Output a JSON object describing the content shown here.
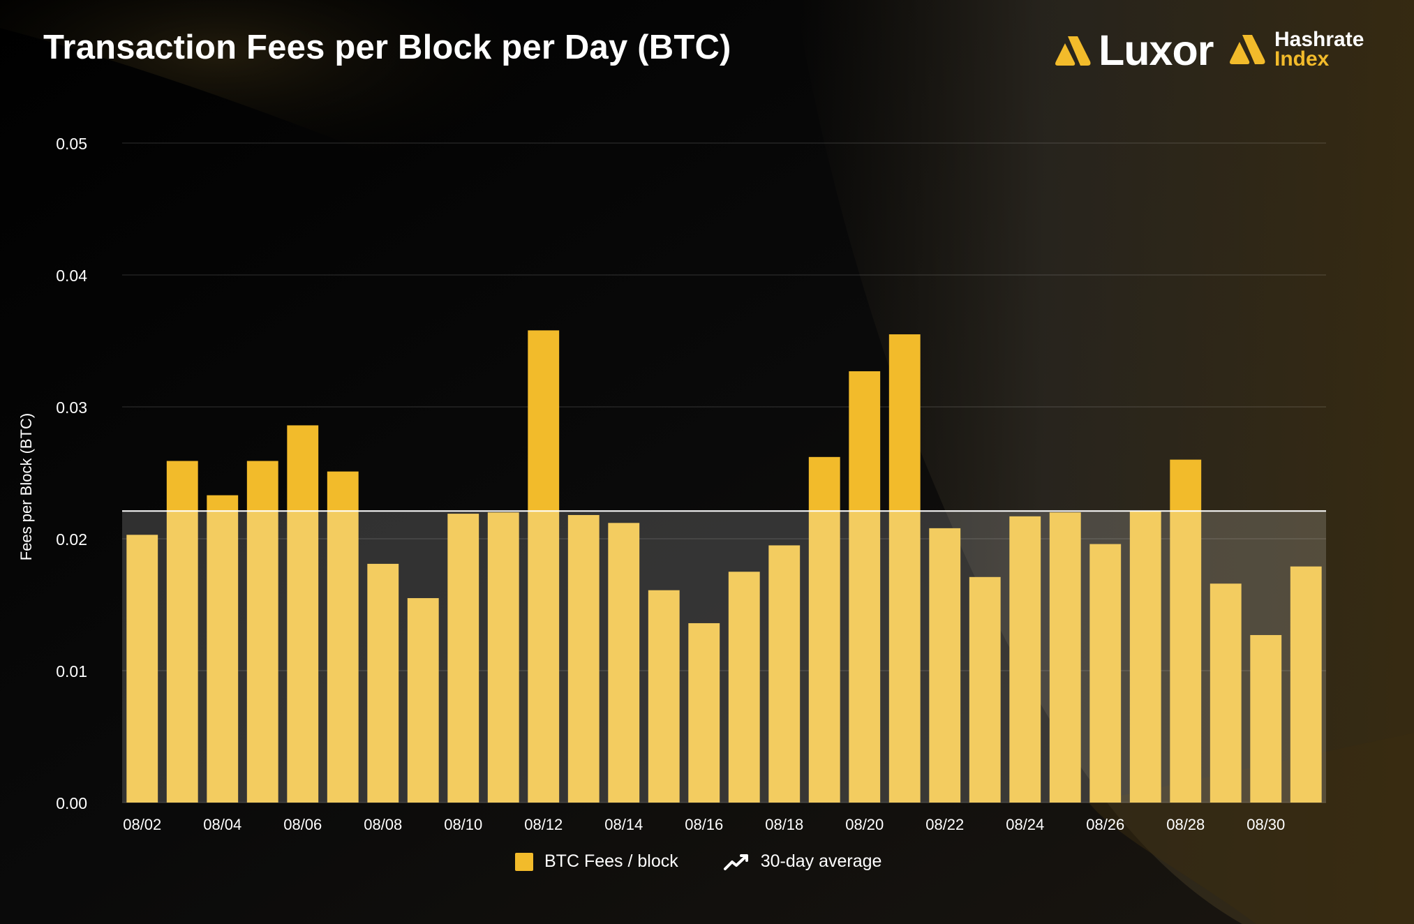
{
  "title": "Transaction Fees per Block per Day (BTC)",
  "brands": {
    "luxor": "Luxor",
    "hashrate_index_line1": "Hashrate",
    "hashrate_index_line2": "Index"
  },
  "colors": {
    "bar_above_avg": "#f2bb2b",
    "bar_below_avg": "#f3cc60",
    "average_line": "#ffffff",
    "accent": "#f2bb2b",
    "background": "#050505"
  },
  "legend": {
    "fees_label": "BTC Fees / block",
    "average_label": "30-day average"
  },
  "chart_data": {
    "type": "bar",
    "title": "Transaction Fees per Block per Day (BTC)",
    "xlabel": "",
    "ylabel": "Fees per Block (BTC)",
    "ylim": [
      0,
      0.05
    ],
    "yticks": [
      "0.00",
      "0.01",
      "0.02",
      "0.03",
      "0.04",
      "0.05"
    ],
    "grid": true,
    "legend_position": "bottom-center",
    "categories": [
      "08/02",
      "08/03",
      "08/04",
      "08/05",
      "08/06",
      "08/07",
      "08/08",
      "08/09",
      "08/10",
      "08/11",
      "08/12",
      "08/13",
      "08/14",
      "08/15",
      "08/16",
      "08/17",
      "08/18",
      "08/19",
      "08/20",
      "08/21",
      "08/22",
      "08/23",
      "08/24",
      "08/25",
      "08/26",
      "08/27",
      "08/28",
      "08/29",
      "08/30",
      "08/31"
    ],
    "xtick_labels": [
      "08/02",
      "08/04",
      "08/06",
      "08/08",
      "08/10",
      "08/12",
      "08/14",
      "08/16",
      "08/18",
      "08/20",
      "08/22",
      "08/24",
      "08/26",
      "08/28",
      "08/30"
    ],
    "series": [
      {
        "name": "BTC Fees / block",
        "values": [
          0.0203,
          0.0259,
          0.0233,
          0.0259,
          0.0286,
          0.0251,
          0.0181,
          0.0155,
          0.0219,
          0.022,
          0.0358,
          0.0218,
          0.0212,
          0.0161,
          0.0136,
          0.0175,
          0.0195,
          0.0262,
          0.0327,
          0.0355,
          0.0208,
          0.0171,
          0.0217,
          0.022,
          0.0196,
          0.0221,
          0.026,
          0.0166,
          0.0127,
          0.0179
        ]
      },
      {
        "name": "30-day average",
        "type": "line",
        "value": 0.0221
      }
    ]
  }
}
